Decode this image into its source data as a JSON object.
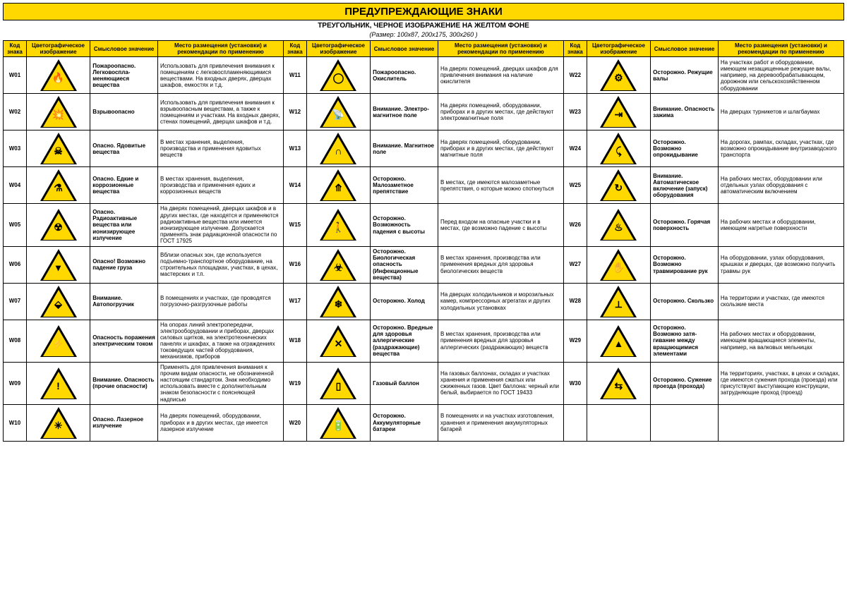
{
  "title": "ПРЕДУПРЕЖДАЮЩИЕ ЗНАКИ",
  "subtitle": "ТРЕУГОЛЬНИК, ЧЕРНОЕ ИЗОБРАЖЕНИЕ НА ЖЕЛТОМ ФОНЕ",
  "subtitle2": "(Размер: 100x87, 200x175, 300x260 )",
  "headers": {
    "code": "Код знака",
    "image": "Цветографическое изображение",
    "meaning": "Смысловое значение",
    "location": "Место размещения (установки) и рекомендации по применению"
  },
  "signs": [
    {
      "code": "W01",
      "sym": "🔥",
      "meaning": "Пожароопасно. Легковоспла­меняющиеся вещества",
      "location": "Использовать для привлечения вни­мания к помещениям с легковоспла­меняющимися веществами. На вход­ных дверях, дверцах шкафов, емкостях и т.д."
    },
    {
      "code": "W02",
      "sym": "💥",
      "meaning": "Взрывоопасно",
      "location": "Использовать для привлечения вни­мания к взрывоопасным веществам, а также к помещениям и участкам. На входных дверях, стенах помеще­ний, дверцах шкафов и т.д."
    },
    {
      "code": "W03",
      "sym": "☠",
      "meaning": "Опасно. Ядовитые вещества",
      "location": "В местах хранения, выделения, производства и применения ядовитых веществ"
    },
    {
      "code": "W04",
      "sym": "⚗",
      "meaning": "Опасно. Едкие и коррозионные вещества",
      "location": "В местах хранения, выделения, производства и применения едких и коррозионных веществ"
    },
    {
      "code": "W05",
      "sym": "☢",
      "meaning": "Опасно. Радиоактивные вещества или ионизирующее излучение",
      "location": "На дверях помещений, дверцах шкафов и в других местах, где находятся и применяются радиоактивные веще­ства или имеется ионизирующее излучение. Допускается применять знак радиационной опасности по ГОСТ 17925"
    },
    {
      "code": "W06",
      "sym": "▾",
      "meaning": "Опасно! Возможно падение груза",
      "location": "Вблизи опасных зон, где используется подъемно-транспортное оборудование, на строительных площадках, участках, в цехах, мастерских и т.п."
    },
    {
      "code": "W07",
      "sym": "⬙",
      "meaning": "Внимание. Автопогрузчик",
      "location": "В помещениях и участках, где проводятся погрузочно-разгрузочные работы"
    },
    {
      "code": "W08",
      "sym": "⚡",
      "meaning": "Опасность поражения электрическим током",
      "location": "На опорах линий электропередачи, электрооборудовании и приборах, дверцах силовых щитков, на электротехнических панелях и шкафах, а также на ограждениях токоведущих частей оборудования, механизмов, приборов"
    },
    {
      "code": "W09",
      "sym": "!",
      "meaning": "Внимание. Опасность (прочие опасности)",
      "location": "Применять для привлечения внимания к прочим видам опасности, не обозна­ченной настоящим стандартом. Знак необходимо использовать вместе с дополнительным знаком безопасности с поясняющей надписью"
    },
    {
      "code": "W10",
      "sym": "✳",
      "meaning": "Опасно. Лазерное излучение",
      "location": "На дверях помещений, оборудовании, приборах и в других местах, где имеется лазерное излучение"
    },
    {
      "code": "W11",
      "sym": "◯",
      "meaning": "Пожароопасно. Окислитель",
      "location": "На дверях помещений, дверцах шкафов для привлечения внимания на наличие окислителя"
    },
    {
      "code": "W12",
      "sym": "📡",
      "meaning": "Внимание. Электро­магнитное поле",
      "location": "На дверях помещений, оборудовании, приборах и в других местах, где действуют электромагнитные поля"
    },
    {
      "code": "W13",
      "sym": "∩",
      "meaning": "Внимание. Магнитное поле",
      "location": "На дверях помещений, оборудовании, приборах и в других местах, где действуют магнитные поля"
    },
    {
      "code": "W14",
      "sym": "⤊",
      "meaning": "Осторожно. Малозаметное препятствие",
      "location": "В местах, где имеются малозаметные препятствия, о которые можно споткнуться"
    },
    {
      "code": "W15",
      "sym": "🚶",
      "meaning": "Осторожно. Возможность падения с высоты",
      "location": "Перед входом на опасные участки и в местах, где возможно падение с высоты"
    },
    {
      "code": "W16",
      "sym": "☣",
      "meaning": "Осторожно. Биологическая опасность (Инфекционные вещества)",
      "location": "В местах хранения, производства или применения вредных для здоровья  биологических веществ"
    },
    {
      "code": "W17",
      "sym": "❄",
      "meaning": "Осторожно. Холод",
      "location": "На дверцах холодильников и морозильных камер, компрессорных агрегатах и других холодильных установках"
    },
    {
      "code": "W18",
      "sym": "✕",
      "meaning": "Осторожно. Вредные для здоровья аллергические (раздражающие) вещества",
      "location": "В местах хранения, производства или применения вредных для здоровья аллергических (раздражающих) веществ"
    },
    {
      "code": "W19",
      "sym": "▯",
      "meaning": "Газовый баллон",
      "location": "На газовых баллонах, складах и участ­ках хранения и применения сжатых или сжиженных газов. Цвет баллона: черный или белый, выбирается по ГОСТ 19433"
    },
    {
      "code": "W20",
      "sym": "🔋",
      "meaning": "Осторожно. Аккумулятор­ные батареи",
      "location": "В помещениях и на участках изготов­ления, хранения и применения аккумуляторных батарей"
    },
    {
      "code": "W22",
      "sym": "⚙",
      "meaning": "Осторожно. Режущие валы",
      "location": "На участках работ и оборудовании, имеющем незащищенные режущие ва­лы, например, на деревообрабатываю­щем, дорожном или сельскохозяйствен­ном оборудовании"
    },
    {
      "code": "W23",
      "sym": "⇥",
      "meaning": "Внимание. Опасность зажима",
      "location": "На дверцах турникетов и шлагбаумах"
    },
    {
      "code": "W24",
      "sym": "⤹",
      "meaning": "Осторожно. Возможно опрокидывание",
      "location": "На дорогах, рампах, складах, участках, где возможно опрокидывание внутри­заводского транспорта"
    },
    {
      "code": "W25",
      "sym": "↻",
      "meaning": "Внимание. Автоматичес­кое включение (запуск) оборудования",
      "location": "На рабочих местах, оборудовании или отдельных узлах оборудования с автоматическим включением"
    },
    {
      "code": "W26",
      "sym": "♨",
      "meaning": "Осторожно. Горячая поверхность",
      "location": "На рабочих местах и оборудовании, имеющем нагретые поверхности"
    },
    {
      "code": "W27",
      "sym": "✋",
      "meaning": "Осторожно. Возможно травмирование рук",
      "location": "На оборудовании, узлах оборудования, крышках и дверцах, где возможно полу­чить травмы рук"
    },
    {
      "code": "W28",
      "sym": "⟂",
      "meaning": "Осторожно. Скользко",
      "location": "На территории и участках, где имеются скользкие места"
    },
    {
      "code": "W29",
      "sym": "▲",
      "meaning": "Осторожно. Возможно затя­гивание между вращающимися элементами",
      "location": "На рабочих местах и оборудовании, имеющем вращающиеся элементы, например, на валковых мельницах"
    },
    {
      "code": "W30",
      "sym": "⇆",
      "meaning": "Осторожно. Сужение проезда (прохода)",
      "location": "На территориях, участках, в цехах и складах, где имеются сужения прохода (проезда) или присутствуют выступающие конструкции, затрудняющие проход (проезд)"
    },
    {
      "code": "",
      "sym": "",
      "meaning": "",
      "location": ""
    }
  ]
}
